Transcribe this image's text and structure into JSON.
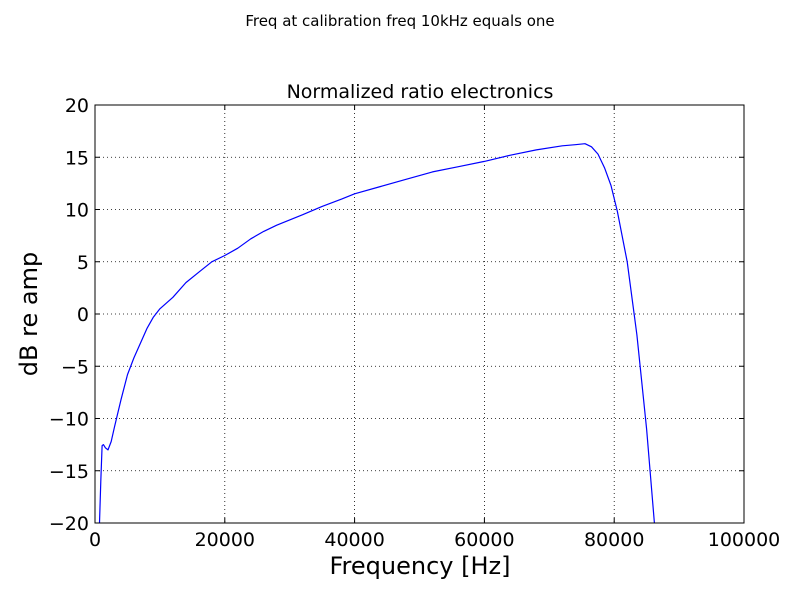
{
  "chart_data": {
    "type": "line",
    "suptitle": "Freq at calibration freq 10kHz equals one",
    "title": "Normalized ratio electronics",
    "xlabel": "Frequency [Hz]",
    "ylabel": "dB re amp",
    "xlim": [
      0,
      100000
    ],
    "ylim": [
      -20,
      20
    ],
    "grid": true,
    "grid_style": "dotted",
    "x_ticks": [
      0,
      20000,
      40000,
      60000,
      80000,
      100000
    ],
    "x_tick_labels": [
      "0",
      "20000",
      "40000",
      "60000",
      "80000",
      "100000"
    ],
    "y_ticks": [
      -20,
      -15,
      -10,
      -5,
      0,
      5,
      10,
      15,
      20
    ],
    "y_tick_labels": [
      "−20",
      "−15",
      "−10",
      "−5",
      "0",
      "5",
      "10",
      "15",
      "20"
    ],
    "series": [
      {
        "color": "#0000ff",
        "x": [
          700,
          900,
          1100,
          1300,
          1600,
          2000,
          2500,
          3000,
          4000,
          5000,
          6000,
          7000,
          8000,
          9000,
          10000,
          12000,
          14000,
          16000,
          18000,
          20000,
          22000,
          24000,
          26000,
          28000,
          30000,
          32000,
          35000,
          38000,
          40000,
          44000,
          48000,
          52000,
          56000,
          60000,
          64000,
          68000,
          72000,
          74000,
          75500,
          76500,
          77500,
          78500,
          79500,
          80500,
          82000,
          83500,
          85000,
          86200
        ],
        "y": [
          -20,
          -16,
          -12.6,
          -12.5,
          -12.8,
          -13,
          -12.2,
          -10.8,
          -8.2,
          -5.8,
          -4.2,
          -2.8,
          -1.4,
          -0.3,
          0.5,
          1.6,
          3,
          4,
          5,
          5.6,
          6.3,
          7.2,
          7.9,
          8.5,
          9,
          9.5,
          10.3,
          11,
          11.5,
          12.2,
          12.9,
          13.6,
          14.1,
          14.6,
          15.2,
          15.7,
          16.1,
          16.2,
          16.3,
          16.0,
          15.3,
          14.0,
          12.3,
          9.8,
          5.0,
          -2.0,
          -11.0,
          -20
        ]
      }
    ]
  }
}
